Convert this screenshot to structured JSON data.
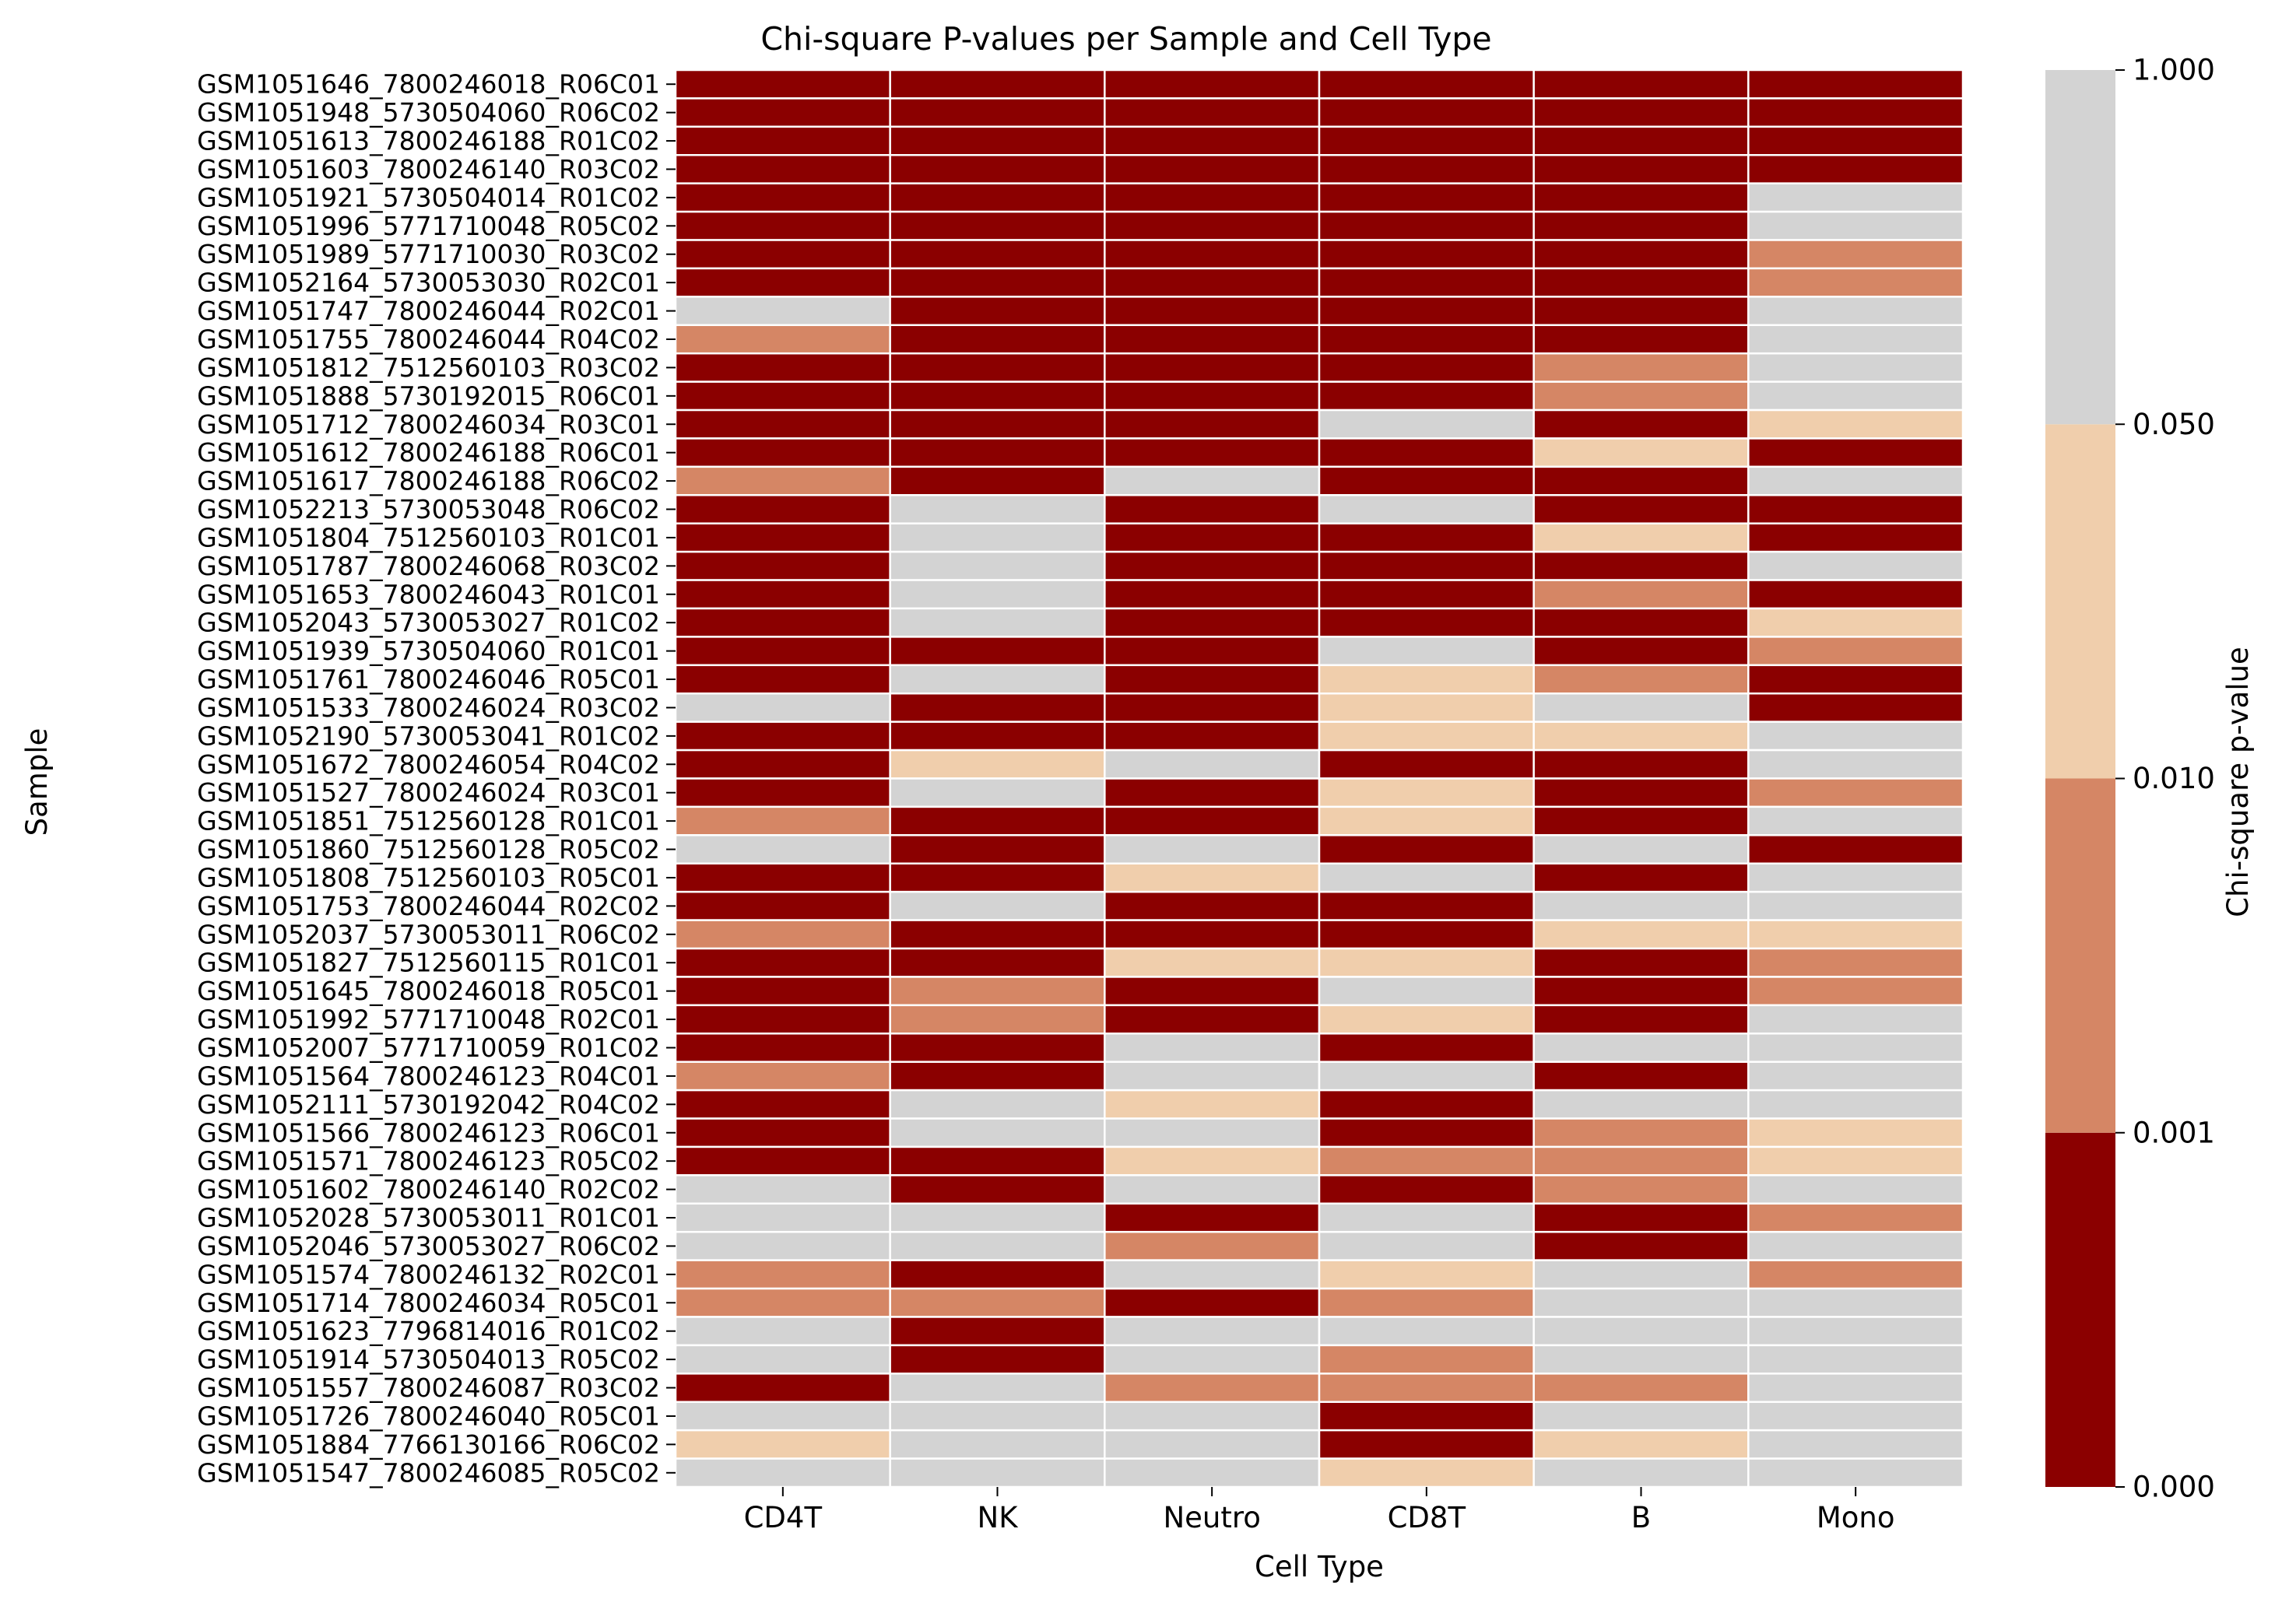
{
  "chart_data": {
    "type": "heatmap",
    "title": "Chi-square P-values per Sample and Cell Type",
    "xlabel": "Cell Type",
    "ylabel": "Sample",
    "columns": [
      "CD4T",
      "NK",
      "Neutro",
      "CD8T",
      "B",
      "Mono"
    ],
    "rows": [
      "GSM1051646_7800246018_R06C01",
      "GSM1051948_5730504060_R06C02",
      "GSM1051613_7800246188_R01C02",
      "GSM1051603_7800246140_R03C02",
      "GSM1051921_5730504014_R01C02",
      "GSM1051996_5771710048_R05C02",
      "GSM1051989_5771710030_R03C02",
      "GSM1052164_5730053030_R02C01",
      "GSM1051747_7800246044_R02C01",
      "GSM1051755_7800246044_R04C02",
      "GSM1051812_7512560103_R03C02",
      "GSM1051888_5730192015_R06C01",
      "GSM1051712_7800246034_R03C01",
      "GSM1051612_7800246188_R06C01",
      "GSM1051617_7800246188_R06C02",
      "GSM1052213_5730053048_R06C02",
      "GSM1051804_7512560103_R01C01",
      "GSM1051787_7800246068_R03C02",
      "GSM1051653_7800246043_R01C01",
      "GSM1052043_5730053027_R01C02",
      "GSM1051939_5730504060_R01C01",
      "GSM1051761_7800246046_R05C01",
      "GSM1051533_7800246024_R03C02",
      "GSM1052190_5730053041_R01C02",
      "GSM1051672_7800246054_R04C02",
      "GSM1051527_7800246024_R03C01",
      "GSM1051851_7512560128_R01C01",
      "GSM1051860_7512560128_R05C02",
      "GSM1051808_7512560103_R05C01",
      "GSM1051753_7800246044_R02C02",
      "GSM1052037_5730053011_R06C02",
      "GSM1051827_7512560115_R01C01",
      "GSM1051645_7800246018_R05C01",
      "GSM1051992_5771710048_R02C01",
      "GSM1052007_5771710059_R01C02",
      "GSM1051564_7800246123_R04C01",
      "GSM1052111_5730192042_R04C02",
      "GSM1051566_7800246123_R06C01",
      "GSM1051571_7800246123_R05C02",
      "GSM1051602_7800246140_R02C02",
      "GSM1052028_5730053011_R01C01",
      "GSM1052046_5730053027_R06C02",
      "GSM1051574_7800246132_R02C01",
      "GSM1051714_7800246034_R05C01",
      "GSM1051623_7796814016_R01C02",
      "GSM1051914_5730504013_R05C02",
      "GSM1051557_7800246087_R03C02",
      "GSM1051726_7800246040_R05C01",
      "GSM1051884_7766130166_R06C02",
      "GSM1051547_7800246085_R05C02"
    ],
    "bin_note": "cell values encode p-value bins: 0 = [0, 0.001), 1 = [0.001, 0.01), 2 = [0.01, 0.05), 3 = [0.05, 1.0]",
    "values": [
      [
        0,
        0,
        0,
        0,
        0,
        0
      ],
      [
        0,
        0,
        0,
        0,
        0,
        0
      ],
      [
        0,
        0,
        0,
        0,
        0,
        0
      ],
      [
        0,
        0,
        0,
        0,
        0,
        0
      ],
      [
        0,
        0,
        0,
        0,
        0,
        3
      ],
      [
        0,
        0,
        0,
        0,
        0,
        3
      ],
      [
        0,
        0,
        0,
        0,
        0,
        1
      ],
      [
        0,
        0,
        0,
        0,
        0,
        1
      ],
      [
        3,
        0,
        0,
        0,
        0,
        3
      ],
      [
        1,
        0,
        0,
        0,
        0,
        3
      ],
      [
        0,
        0,
        0,
        0,
        1,
        3
      ],
      [
        0,
        0,
        0,
        0,
        1,
        3
      ],
      [
        0,
        0,
        0,
        3,
        0,
        2
      ],
      [
        0,
        0,
        0,
        0,
        2,
        0
      ],
      [
        1,
        0,
        3,
        0,
        0,
        3
      ],
      [
        0,
        3,
        0,
        3,
        0,
        0
      ],
      [
        0,
        3,
        0,
        0,
        2,
        0
      ],
      [
        0,
        3,
        0,
        0,
        0,
        3
      ],
      [
        0,
        3,
        0,
        0,
        1,
        0
      ],
      [
        0,
        3,
        0,
        0,
        0,
        2
      ],
      [
        0,
        0,
        0,
        3,
        0,
        1
      ],
      [
        0,
        3,
        0,
        2,
        1,
        0
      ],
      [
        3,
        0,
        0,
        2,
        3,
        0
      ],
      [
        0,
        0,
        0,
        2,
        2,
        3
      ],
      [
        0,
        2,
        3,
        0,
        0,
        3
      ],
      [
        0,
        3,
        0,
        2,
        0,
        1
      ],
      [
        1,
        0,
        0,
        2,
        0,
        3
      ],
      [
        3,
        0,
        3,
        0,
        3,
        0
      ],
      [
        0,
        0,
        2,
        3,
        0,
        3
      ],
      [
        0,
        3,
        0,
        0,
        3,
        3
      ],
      [
        1,
        0,
        0,
        0,
        2,
        2
      ],
      [
        0,
        0,
        2,
        2,
        0,
        1
      ],
      [
        0,
        1,
        0,
        3,
        0,
        1
      ],
      [
        0,
        1,
        0,
        2,
        0,
        3
      ],
      [
        0,
        0,
        3,
        0,
        3,
        3
      ],
      [
        1,
        0,
        3,
        3,
        0,
        3
      ],
      [
        0,
        3,
        2,
        0,
        3,
        3
      ],
      [
        0,
        3,
        3,
        0,
        1,
        2
      ],
      [
        0,
        0,
        2,
        1,
        1,
        2
      ],
      [
        3,
        0,
        3,
        0,
        1,
        3
      ],
      [
        3,
        3,
        0,
        3,
        0,
        1
      ],
      [
        3,
        3,
        1,
        3,
        0,
        3
      ],
      [
        1,
        0,
        3,
        2,
        3,
        1
      ],
      [
        1,
        1,
        0,
        1,
        3,
        3
      ],
      [
        3,
        0,
        3,
        3,
        3,
        3
      ],
      [
        3,
        0,
        3,
        1,
        3,
        3
      ],
      [
        0,
        3,
        1,
        1,
        1,
        3
      ],
      [
        3,
        3,
        3,
        0,
        3,
        3
      ],
      [
        2,
        3,
        3,
        0,
        2,
        3
      ],
      [
        3,
        3,
        3,
        2,
        3,
        3
      ]
    ],
    "colorbar": {
      "label": "Chi-square p-value",
      "ticks": [
        "0.000",
        "0.001",
        "0.010",
        "0.050",
        "1.000"
      ],
      "bin_colors": [
        "#8b0000",
        "#d58665",
        "#f0ceac",
        "#d3d3d3"
      ]
    },
    "grid": false
  }
}
